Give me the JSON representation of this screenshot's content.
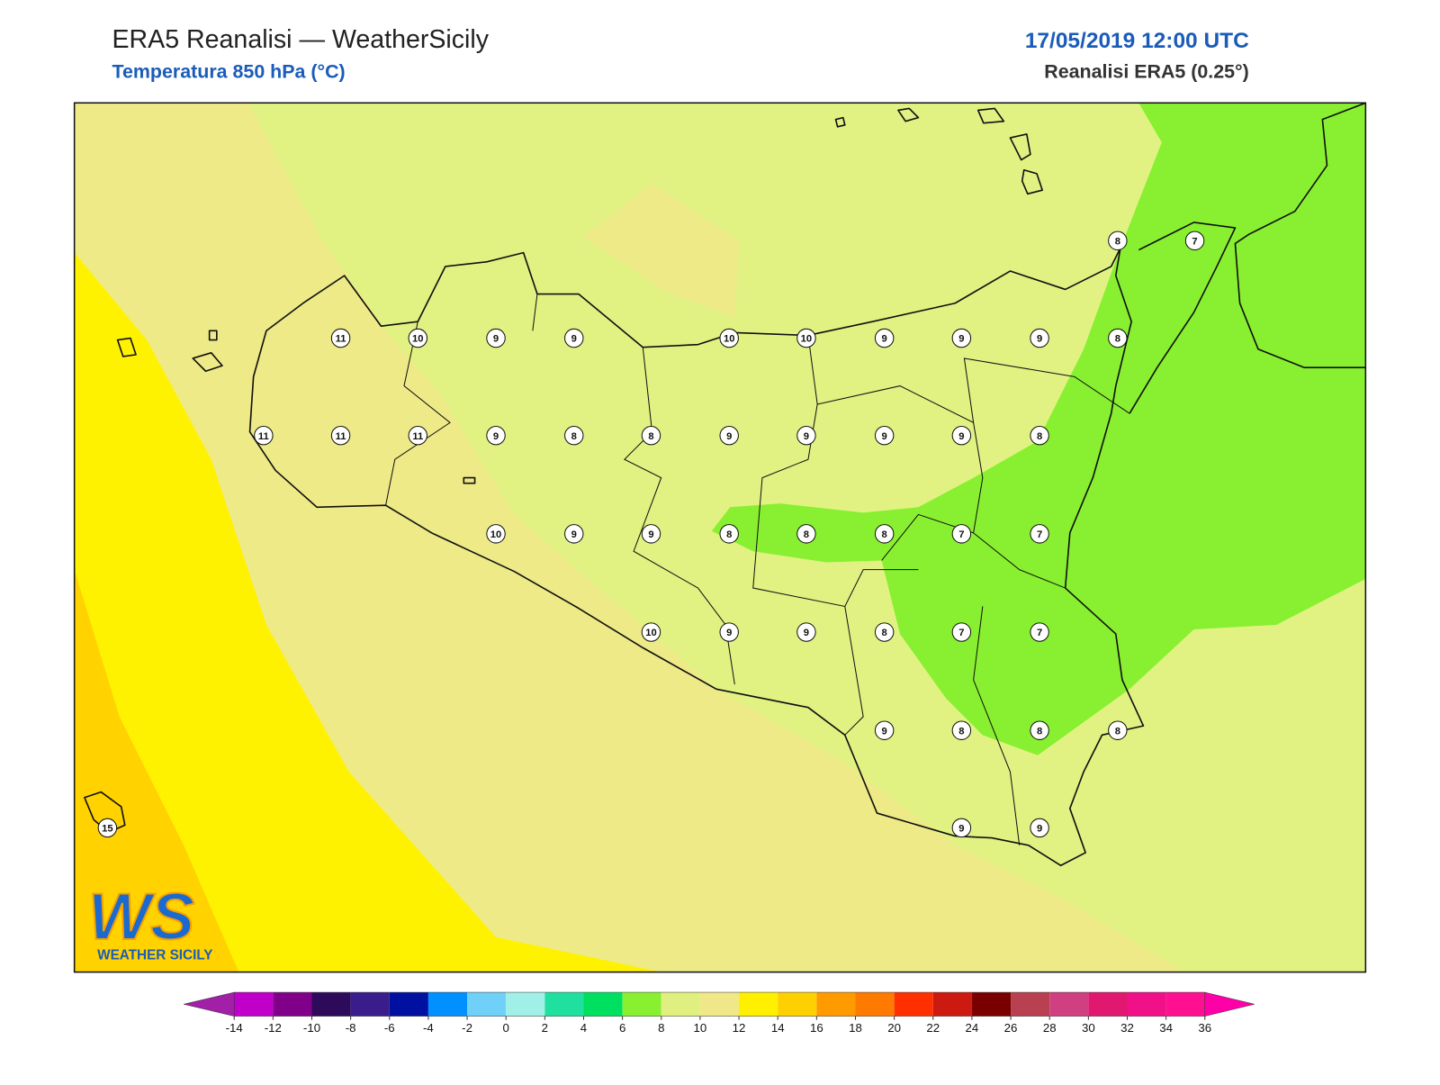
{
  "header": {
    "title": "ERA5 Reanalisi — WeatherSicily",
    "subtitle": "Temperatura 850 hPa (°C)",
    "date": "17/05/2019 12:00 UTC",
    "source": "Reanalisi ERA5 (0.25°)"
  },
  "stations": [
    8,
    7,
    11,
    10,
    9,
    9,
    10,
    10,
    9,
    9,
    9,
    8,
    11,
    11,
    11,
    9,
    8,
    8,
    9,
    9,
    9,
    9,
    8,
    10,
    9,
    9,
    8,
    8,
    8,
    7,
    7,
    10,
    9,
    9,
    8,
    7,
    7,
    9,
    8,
    8,
    8,
    9,
    9,
    15
  ],
  "logo": {
    "mark": "WS",
    "text": "WEATHER SICILY"
  },
  "colorbar": {
    "ticks": [
      -14,
      -12,
      -10,
      -8,
      -6,
      -4,
      -2,
      0,
      2,
      4,
      6,
      8,
      10,
      12,
      14,
      16,
      18,
      20,
      22,
      24,
      26,
      28,
      30,
      32,
      34,
      36
    ],
    "under_color": "#a21fa8",
    "over_color": "#ff00a8",
    "colors": [
      "#c000c8",
      "#80008a",
      "#2e0a5a",
      "#3a1c8a",
      "#0010a0",
      "#0090ff",
      "#70d0f8",
      "#a0f0e8",
      "#20e0a0",
      "#00e060",
      "#88f030",
      "#e0f080",
      "#f0e888",
      "#fff000",
      "#ffd000",
      "#ff9a00",
      "#ff7a00",
      "#ff3000",
      "#cc1a10",
      "#7a0000",
      "#b84050",
      "#d04080",
      "#e01870",
      "#f01088",
      "#ff1090"
    ]
  }
}
